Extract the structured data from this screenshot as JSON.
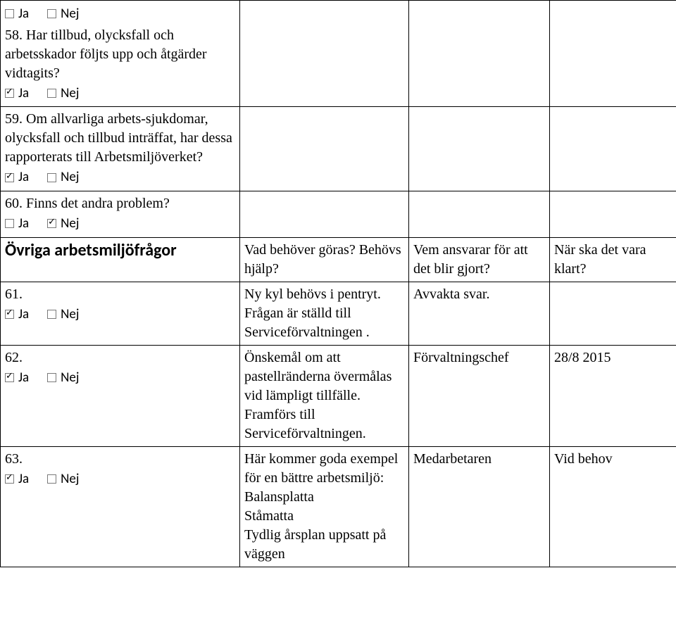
{
  "labels": {
    "ja": "Ja",
    "nej": "Nej"
  },
  "rows": [
    {
      "type": "question",
      "top_check": {
        "ja": false,
        "nej": false
      },
      "text": "58. Har tillbud, olycksfall och arbetsskador följts upp och åtgärder vidtagits?",
      "bottom_check": {
        "ja": true,
        "nej": false
      },
      "c2": "",
      "c3": "",
      "c4": ""
    },
    {
      "type": "question",
      "text": "59. Om allvarliga arbets-sjukdomar, olycksfall och tillbud inträffat, har dessa rapporterats till Arbetsmiljöverket?",
      "bottom_check": {
        "ja": true,
        "nej": false
      },
      "c2": "",
      "c3": "",
      "c4": ""
    },
    {
      "type": "question",
      "text": "60. Finns det andra problem?",
      "bottom_check": {
        "ja": false,
        "nej": true
      },
      "c2": "",
      "c3": "",
      "c4": ""
    },
    {
      "type": "section",
      "title": "Övriga arbetsmiljöfrågor",
      "c2": "Vad behöver göras? Behövs hjälp?",
      "c3": "Vem ansvarar för att det blir gjort?",
      "c4": "När ska det vara klart?"
    },
    {
      "type": "question",
      "text": "61.",
      "bottom_check": {
        "ja": true,
        "nej": false
      },
      "c2": "Ny kyl behövs i pentryt. Frågan är ställd till Serviceförvaltningen .",
      "c3": "Avvakta svar.",
      "c4": ""
    },
    {
      "type": "question",
      "text": "62.",
      "bottom_check": {
        "ja": true,
        "nej": false
      },
      "c2": "Önskemål om att pastellränderna övermålas vid lämpligt tillfälle. Framförs till Serviceförvaltningen.",
      "c3": "Förvaltningschef",
      "c4": "28/8 2015"
    },
    {
      "type": "question",
      "text": "63.",
      "bottom_check": {
        "ja": true,
        "nej": false
      },
      "c2": "Här kommer goda exempel för en bättre arbetsmiljö:\nBalansplatta\nStåmatta\nTydlig årsplan uppsatt på väggen",
      "c3": "Medarbetaren",
      "c4": "Vid behov"
    }
  ]
}
